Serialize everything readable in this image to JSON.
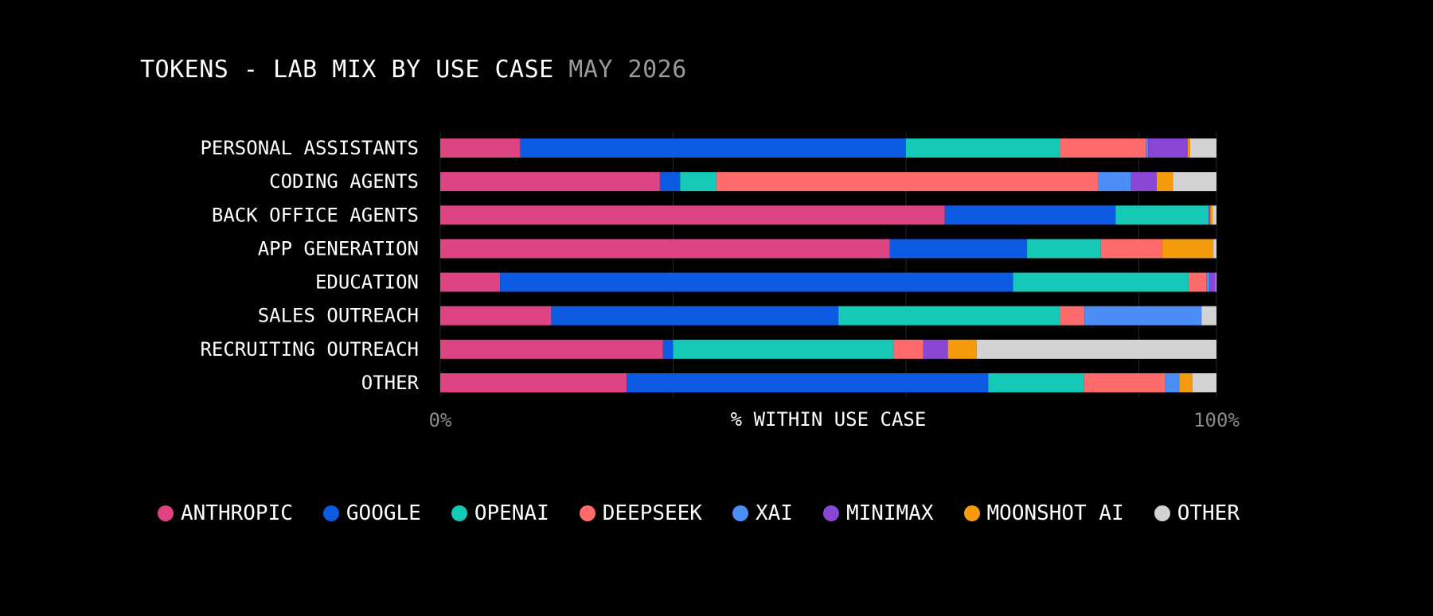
{
  "title": {
    "main": "TOKENS - LAB MIX BY USE CASE",
    "date": "MAY 2026"
  },
  "colors": {
    "background": "#000000",
    "grid": "#262626"
  },
  "chart_data": {
    "type": "bar",
    "orientation": "horizontal",
    "stacked": true,
    "normalized": true,
    "title": "TOKENS - LAB MIX BY USE CASE",
    "subtitle": "MAY 2026",
    "xlabel": "% WITHIN USE CASE",
    "ylabel": "",
    "xlim": [
      0,
      100
    ],
    "x_tick_labels": [
      "0%",
      "100%"
    ],
    "grid": true,
    "legend_position": "bottom",
    "categories": [
      "PERSONAL ASSISTANTS",
      "CODING AGENTS",
      "BACK OFFICE AGENTS",
      "APP GENERATION",
      "EDUCATION",
      "SALES OUTREACH",
      "RECRUITING OUTREACH",
      "OTHER"
    ],
    "series": [
      {
        "name": "ANTHROPIC",
        "color": "#DE4384",
        "values": [
          10.3,
          28.3,
          65.0,
          57.9,
          7.7,
          14.3,
          28.7,
          24.0
        ]
      },
      {
        "name": "GOOGLE",
        "color": "#0D5AE3",
        "values": [
          49.7,
          2.6,
          22.0,
          17.7,
          66.1,
          37.0,
          1.3,
          46.6
        ]
      },
      {
        "name": "OPENAI",
        "color": "#14CAB6",
        "values": [
          19.9,
          4.7,
          12.0,
          9.5,
          22.6,
          28.5,
          28.4,
          12.3
        ]
      },
      {
        "name": "DEEPSEEK",
        "color": "#FF6B6B",
        "values": [
          11.0,
          49.2,
          0.0,
          7.9,
          2.3,
          3.2,
          3.8,
          10.5
        ]
      },
      {
        "name": "XAI",
        "color": "#4B8EF5",
        "values": [
          0.3,
          4.2,
          0.0,
          0.0,
          0.4,
          15.1,
          0.0,
          1.8
        ]
      },
      {
        "name": "MINIMAX",
        "color": "#8A47D6",
        "values": [
          5.1,
          3.3,
          0.2,
          0.0,
          0.8,
          0.0,
          3.2,
          0.0
        ]
      },
      {
        "name": "MOONSHOT AI",
        "color": "#F59B0B",
        "values": [
          0.3,
          2.1,
          0.3,
          6.6,
          0.0,
          0.0,
          3.7,
          1.7
        ]
      },
      {
        "name": "OTHER",
        "color": "#D3D3D3",
        "values": [
          3.4,
          5.6,
          0.5,
          0.4,
          0.1,
          1.9,
          30.9,
          3.1
        ]
      }
    ]
  }
}
